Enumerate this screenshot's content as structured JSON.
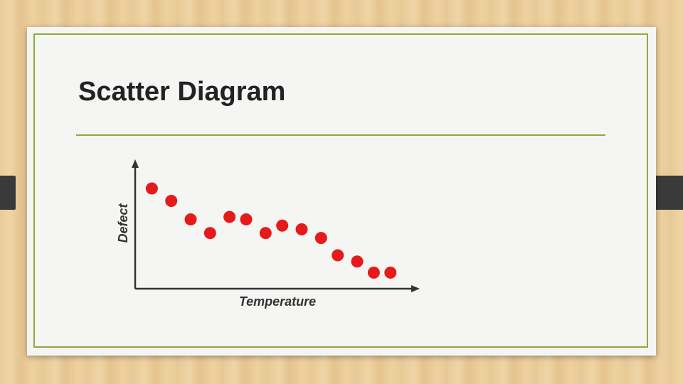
{
  "slide": {
    "title": "Scatter Diagram"
  },
  "colors": {
    "point": "#e51b1b",
    "axis": "#333333",
    "accent_line": "#8ea93d"
  },
  "chart_data": {
    "type": "scatter",
    "xlabel": "Temperature",
    "ylabel": "Defect",
    "xlim": [
      0,
      100
    ],
    "ylim": [
      0,
      100
    ],
    "grid": false,
    "points": [
      {
        "x": 6,
        "y": 81
      },
      {
        "x": 13,
        "y": 71
      },
      {
        "x": 20,
        "y": 56
      },
      {
        "x": 27,
        "y": 45
      },
      {
        "x": 34,
        "y": 58
      },
      {
        "x": 40,
        "y": 56
      },
      {
        "x": 47,
        "y": 45
      },
      {
        "x": 53,
        "y": 51
      },
      {
        "x": 60,
        "y": 48
      },
      {
        "x": 67,
        "y": 41
      },
      {
        "x": 73,
        "y": 27
      },
      {
        "x": 80,
        "y": 22
      },
      {
        "x": 86,
        "y": 13
      },
      {
        "x": 92,
        "y": 13
      }
    ]
  }
}
